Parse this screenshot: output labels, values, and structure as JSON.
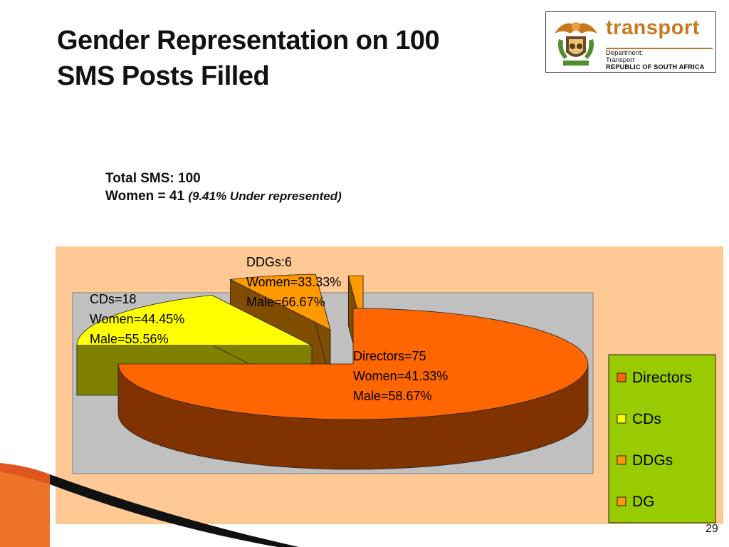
{
  "slide": {
    "title_line1": "Gender Representation on 100",
    "title_line2": "SMS Posts Filled",
    "page_number": "29"
  },
  "logo": {
    "brand": "transport",
    "dept_line1": "Department:",
    "dept_line2": "Transport",
    "dept_line3": "REPUBLIC OF SOUTH AFRICA"
  },
  "summary": {
    "total_text": "Total SMS: 100",
    "women_text": "Women =  41",
    "women_note": "(9.41% Under represented)"
  },
  "colors": {
    "Directors": "#ff6600",
    "CDs": "#ffff00",
    "DDGs": "#ff9900",
    "DG": "#ff9900",
    "Directors_side": "#803300",
    "CDs_side": "#808000",
    "DDGs_side": "#804c00",
    "plot_bg": "#c0c0c0",
    "legend_bg": "#99cc00",
    "chart_bg": "#fec994"
  },
  "chart_data": {
    "type": "pie",
    "style": "3d-exploded",
    "categories": [
      "Directors",
      "CDs",
      "DDGs",
      "DG"
    ],
    "values": [
      75,
      18,
      6,
      1
    ],
    "start_angle": 90,
    "data_labels": [
      [
        "Directors=75",
        "Women=41.33%",
        "Male=58.67%"
      ],
      [
        "CDs=18",
        "Women=44.45%",
        "Male=55.56%"
      ],
      [
        "DDGs:6",
        "Women=33.33%",
        "Male=66.67%"
      ]
    ],
    "legend": [
      "Directors",
      "CDs",
      "DDGs",
      "DG"
    ],
    "legend_position": "right"
  }
}
